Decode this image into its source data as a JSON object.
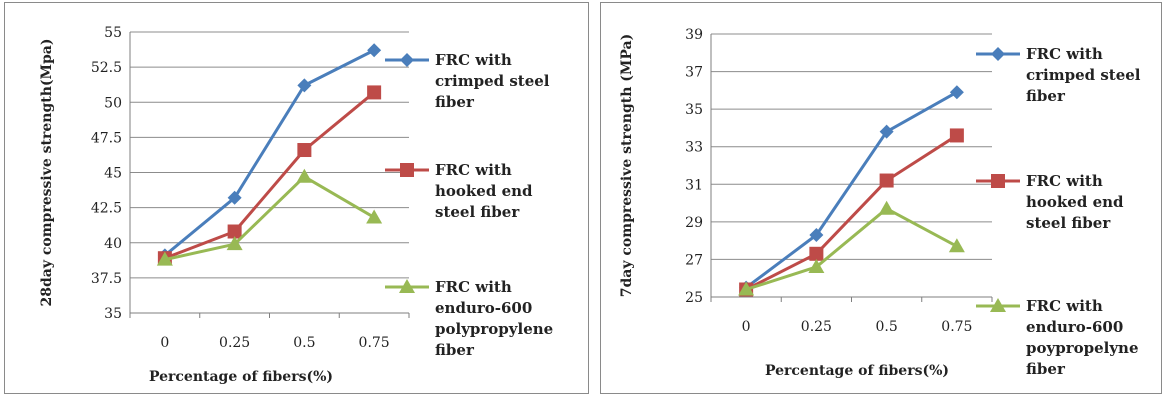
{
  "chart_data": [
    {
      "type": "line",
      "ylabel": "28day compressive strength(Mpa)",
      "xlabel": "Percentage of fibers(%)",
      "categories": [
        "0",
        "0.25",
        "0.5",
        "0.75"
      ],
      "y_ticks": [
        "35",
        "37.5",
        "40",
        "42.5",
        "45",
        "47.5",
        "50",
        "52.5",
        "55"
      ],
      "ylim": [
        35,
        55
      ],
      "grid": "horizontal",
      "legend_position": "right",
      "series": [
        {
          "name": [
            "FRC with",
            "crimped steel",
            "fiber"
          ],
          "color": "#4a7ebb",
          "marker": "diamond",
          "values": [
            39.1,
            43.2,
            51.2,
            53.7
          ]
        },
        {
          "name": [
            "FRC with",
            "hooked end",
            "steel fiber"
          ],
          "color": "#be4b48",
          "marker": "square",
          "values": [
            38.9,
            40.8,
            46.6,
            50.7
          ]
        },
        {
          "name": [
            "FRC with",
            "enduro-600",
            "polypropylene",
            "fiber"
          ],
          "color": "#98b954",
          "marker": "triangle",
          "values": [
            38.8,
            39.9,
            44.7,
            41.8
          ]
        }
      ]
    },
    {
      "type": "line",
      "ylabel": "7day compressive strength (MPa)",
      "xlabel": "Percentage of fibers(%)",
      "categories": [
        "0",
        "0.25",
        "0.5",
        "0.75"
      ],
      "y_ticks": [
        "25",
        "27",
        "29",
        "31",
        "33",
        "35",
        "37",
        "39"
      ],
      "ylim": [
        25,
        39
      ],
      "grid": "horizontal",
      "legend_position": "right",
      "series": [
        {
          "name": [
            "FRC with",
            "crimped steel",
            "fiber"
          ],
          "color": "#4a7ebb",
          "marker": "diamond",
          "values": [
            25.5,
            28.3,
            33.8,
            35.9
          ]
        },
        {
          "name": [
            "FRC with",
            "hooked end",
            "steel fiber"
          ],
          "color": "#be4b48",
          "marker": "square",
          "values": [
            25.4,
            27.3,
            31.2,
            33.6
          ]
        },
        {
          "name": [
            "FRC with",
            "enduro-600",
            "poypropelyne",
            "fiber"
          ],
          "color": "#98b954",
          "marker": "triangle",
          "values": [
            25.4,
            26.6,
            29.7,
            27.7
          ]
        }
      ]
    }
  ]
}
